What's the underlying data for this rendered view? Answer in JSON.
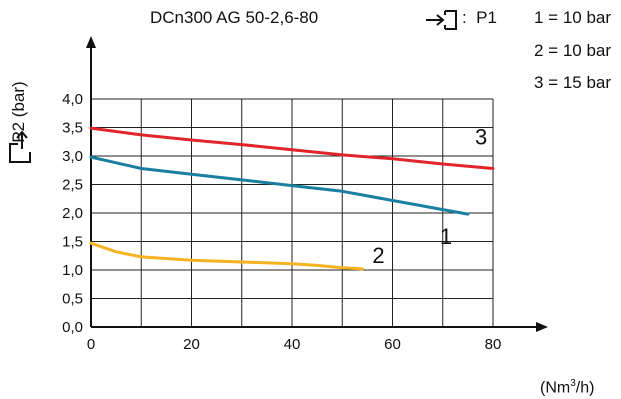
{
  "chart_data": {
    "type": "line",
    "title": "DCn300 AG 50-2,6-80",
    "xlabel_unit": "(Nm³/h)",
    "ylabel": "P2 (bar)",
    "x_ticks": [
      "0",
      "20",
      "40",
      "60",
      "80"
    ],
    "y_ticks": [
      "0,0",
      "0,5",
      "1,0",
      "1,5",
      "2,0",
      "2,5",
      "3,0",
      "3,5",
      "4,0"
    ],
    "xlim": [
      0,
      80
    ],
    "ylim": [
      0,
      4
    ],
    "grid": true,
    "legend": {
      "label": "P1",
      "entries": [
        "1 = 10 bar",
        "2 = 10 bar",
        "3 = 15 bar"
      ]
    },
    "series": [
      {
        "name": "1",
        "color": "#1a7fa0",
        "x": [
          0,
          10,
          20,
          30,
          40,
          50,
          55,
          60,
          65,
          70,
          75
        ],
        "y": [
          2.98,
          2.78,
          2.68,
          2.58,
          2.48,
          2.38,
          2.3,
          2.22,
          2.14,
          2.06,
          1.98
        ]
      },
      {
        "name": "2",
        "color": "#f5b321",
        "x": [
          0,
          5,
          10,
          20,
          30,
          40,
          45,
          50,
          54
        ],
        "y": [
          1.47,
          1.32,
          1.23,
          1.17,
          1.14,
          1.11,
          1.08,
          1.04,
          1.02
        ]
      },
      {
        "name": "3",
        "color": "#e1262b",
        "x": [
          0,
          10,
          20,
          30,
          40,
          50,
          60,
          70,
          80
        ],
        "y": [
          3.49,
          3.37,
          3.28,
          3.2,
          3.11,
          3.02,
          2.95,
          2.86,
          2.78
        ]
      }
    ]
  }
}
